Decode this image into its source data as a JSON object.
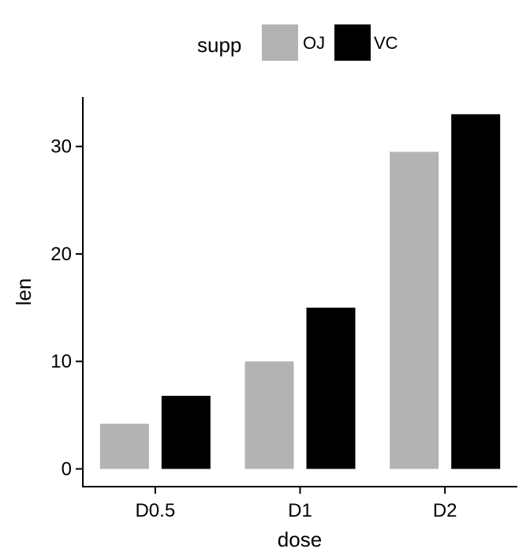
{
  "chart_data": {
    "type": "bar",
    "categories": [
      "D0.5",
      "D1",
      "D2"
    ],
    "series": [
      {
        "name": "OJ",
        "values": [
          4.2,
          10.0,
          29.5
        ],
        "color": "#b3b3b3"
      },
      {
        "name": "VC",
        "values": [
          6.8,
          15.0,
          33.0
        ],
        "color": "#000000"
      }
    ],
    "xlabel": "dose",
    "ylabel": "len",
    "ylim": [
      -1.65,
      34.6
    ],
    "yticks": [
      0,
      10,
      20,
      30
    ],
    "legend": {
      "title": "supp",
      "position": "top"
    },
    "grid": false
  }
}
